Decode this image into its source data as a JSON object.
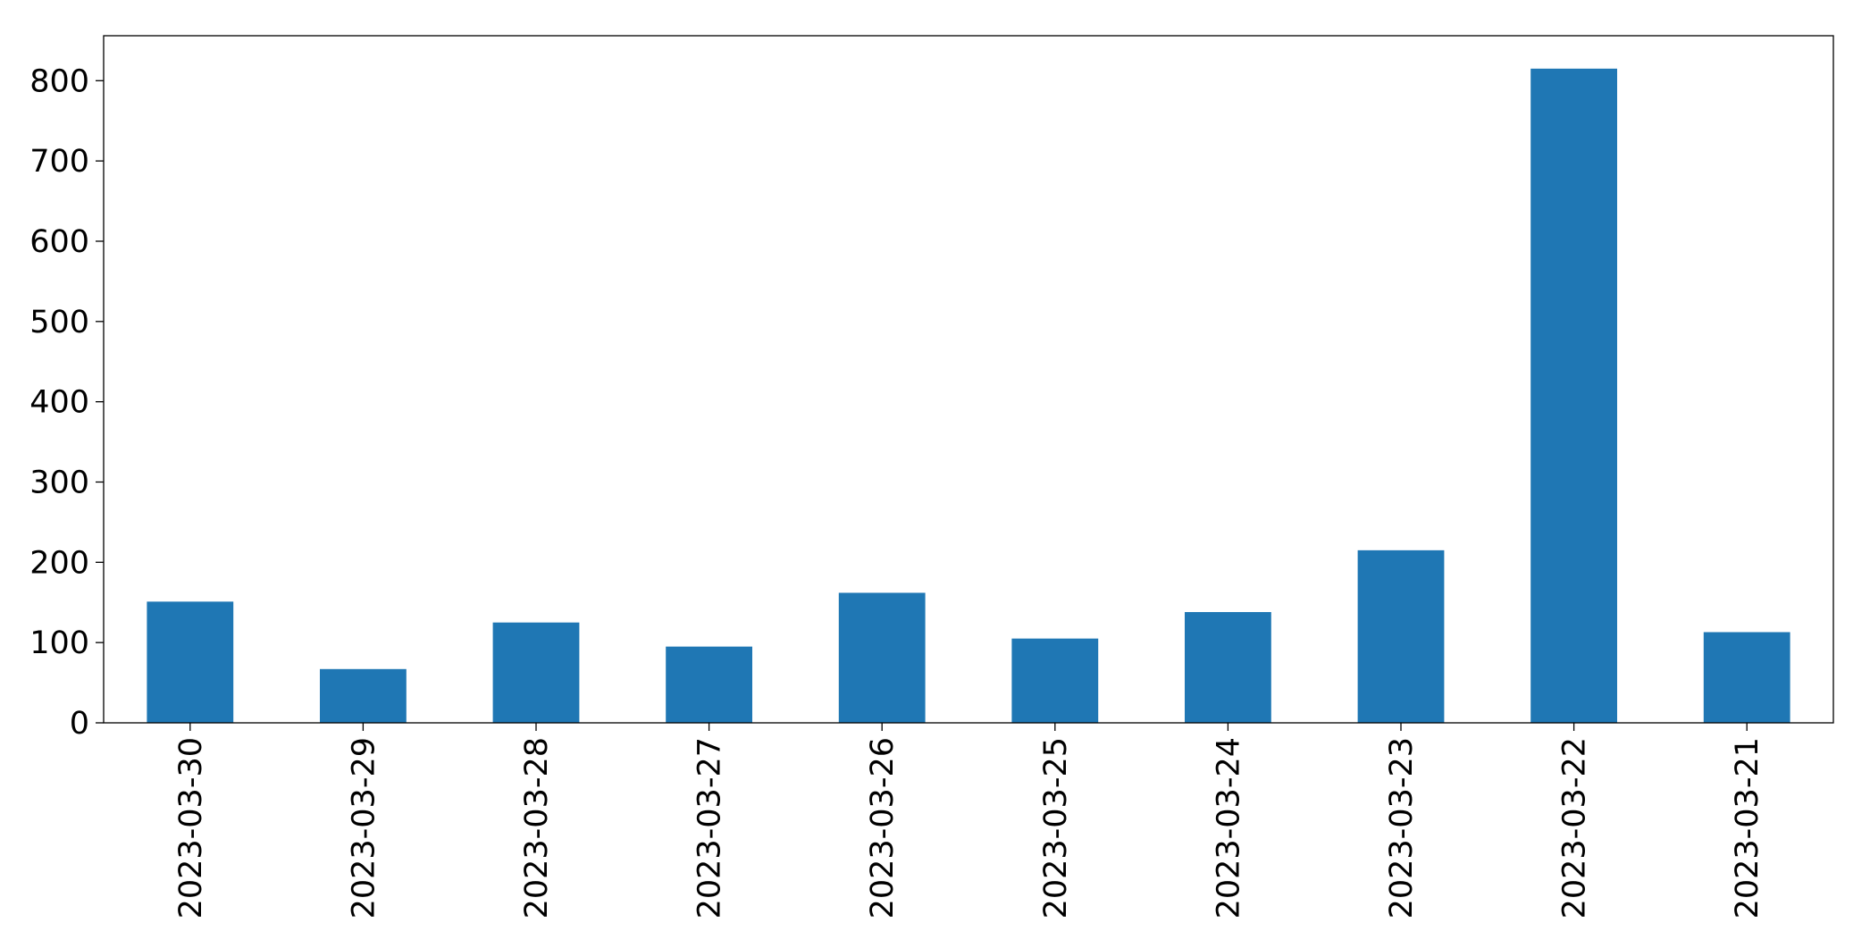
{
  "chart_data": {
    "type": "bar",
    "categories": [
      "2023-03-30",
      "2023-03-29",
      "2023-03-28",
      "2023-03-27",
      "2023-03-26",
      "2023-03-25",
      "2023-03-24",
      "2023-03-23",
      "2023-03-22",
      "2023-03-21"
    ],
    "values": [
      151,
      67,
      125,
      95,
      162,
      105,
      138,
      215,
      815,
      113
    ],
    "color": "#1f77b4",
    "ylim": [
      0,
      856
    ],
    "yticks": [
      0,
      100,
      200,
      300,
      400,
      500,
      600,
      700,
      800
    ],
    "grid": false
  }
}
